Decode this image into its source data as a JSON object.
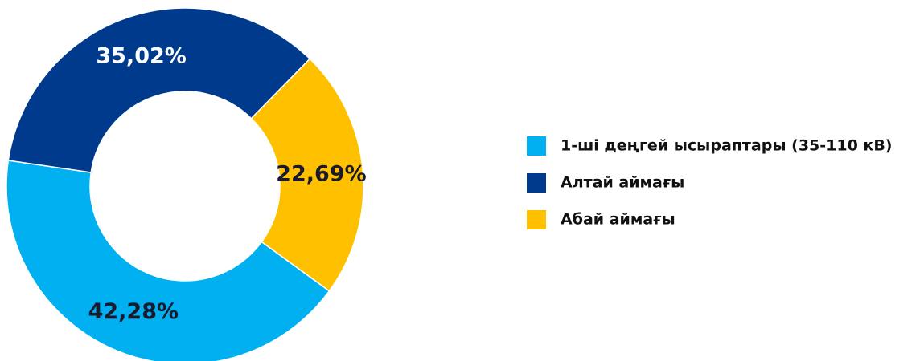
{
  "chart_data": {
    "type": "donut",
    "categories": [
      "1-ші деңгей ысыраптары  (35-110 кВ)",
      "Алтай аймағы",
      "Абай аймағы"
    ],
    "values": [
      42.28,
      35.02,
      22.69
    ],
    "value_labels": [
      "42,28%",
      "35,02%",
      "22,69%"
    ],
    "colors": [
      "#00b0f0",
      "#003a8c",
      "#ffc000"
    ],
    "legend": "right"
  }
}
